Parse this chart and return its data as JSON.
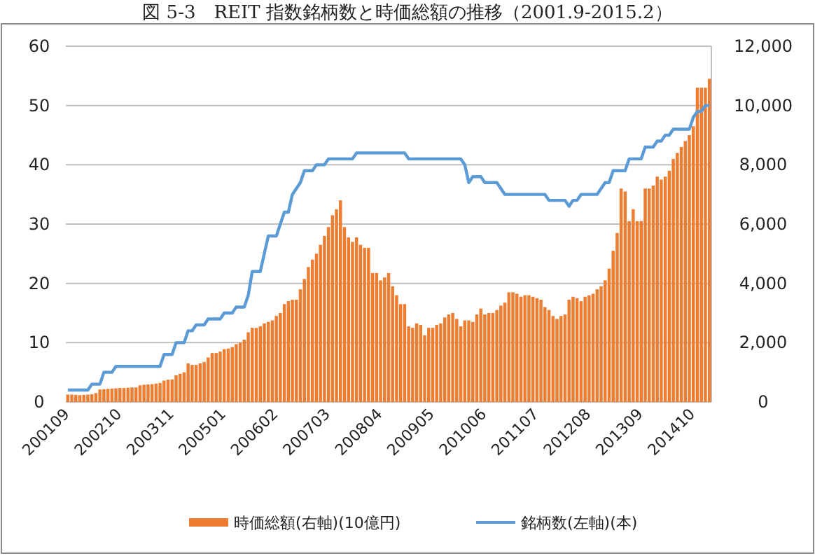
{
  "chart_data": {
    "type": "bar",
    "title": "図 5-3　REIT 指数銘柄数と時価総額の推移（2001.9-2015.2）",
    "categories": [
      "200109",
      null,
      null,
      null,
      null,
      null,
      null,
      null,
      null,
      null,
      null,
      null,
      null,
      "200210",
      null,
      null,
      null,
      null,
      null,
      null,
      null,
      null,
      null,
      null,
      null,
      null,
      "200311",
      null,
      null,
      null,
      null,
      null,
      null,
      null,
      null,
      null,
      null,
      null,
      null,
      "200501",
      null,
      null,
      null,
      null,
      null,
      null,
      null,
      null,
      null,
      null,
      null,
      null,
      "200602",
      null,
      null,
      null,
      null,
      null,
      null,
      null,
      null,
      null,
      null,
      null,
      null,
      "200703",
      null,
      null,
      null,
      null,
      null,
      null,
      null,
      null,
      null,
      null,
      null,
      null,
      "200804",
      null,
      null,
      null,
      null,
      null,
      null,
      null,
      null,
      null,
      null,
      null,
      null,
      "200905",
      null,
      null,
      null,
      null,
      null,
      null,
      null,
      null,
      null,
      null,
      null,
      null,
      "201006",
      null,
      null,
      null,
      null,
      null,
      null,
      null,
      null,
      null,
      null,
      null,
      null,
      "201107",
      null,
      null,
      null,
      null,
      null,
      null,
      null,
      null,
      null,
      null,
      null,
      null,
      "201208",
      null,
      null,
      null,
      null,
      null,
      null,
      null,
      null,
      null,
      null,
      null,
      null,
      "201309",
      null,
      null,
      null,
      null,
      null,
      null,
      null,
      null,
      null,
      null,
      null,
      null,
      "201410",
      null,
      null,
      null,
      null
    ],
    "series": [
      {
        "name": "時価総額(右軸)(10億円)",
        "type": "bar",
        "axis": "y2",
        "color": "#ed7d31",
        "values": [
          250,
          250,
          240,
          230,
          240,
          250,
          260,
          300,
          420,
          430,
          440,
          450,
          460,
          470,
          470,
          480,
          490,
          490,
          560,
          580,
          590,
          600,
          620,
          640,
          720,
          750,
          760,
          900,
          950,
          1000,
          1300,
          1250,
          1250,
          1300,
          1350,
          1500,
          1650,
          1650,
          1700,
          1780,
          1800,
          1850,
          1950,
          2000,
          2100,
          2350,
          2500,
          2500,
          2550,
          2650,
          2700,
          2750,
          2900,
          3000,
          3300,
          3400,
          3450,
          3450,
          3800,
          4150,
          4550,
          4800,
          5000,
          5300,
          5600,
          5900,
          6300,
          6500,
          6800,
          5900,
          5550,
          5400,
          5550,
          5300,
          5200,
          5200,
          4350,
          4350,
          4100,
          4200,
          4350,
          3900,
          3600,
          3300,
          3300,
          2550,
          2500,
          2650,
          2600,
          2250,
          2500,
          2500,
          2600,
          2650,
          2850,
          2950,
          3000,
          2800,
          2550,
          2750,
          2750,
          2700,
          2950,
          3150,
          2950,
          3000,
          3000,
          3100,
          3250,
          3350,
          3700,
          3700,
          3650,
          3550,
          3600,
          3600,
          3550,
          3500,
          3450,
          3200,
          3100,
          2900,
          2800,
          2900,
          2950,
          3450,
          3550,
          3500,
          3400,
          3550,
          3600,
          3650,
          3800,
          3900,
          4100,
          4500,
          5100,
          5700,
          7200,
          7100,
          6100,
          6500,
          6100,
          6100,
          7200,
          7200,
          7300,
          7600,
          7500,
          7600,
          7800,
          8200,
          8400,
          8600,
          8800,
          9000,
          9300,
          10600,
          10600,
          10600,
          10900
        ]
      },
      {
        "name": "銘柄数(左軸)(本)",
        "type": "line",
        "axis": "y",
        "color": "#5b9bd5",
        "values": [
          2,
          2,
          2,
          2,
          2,
          2,
          3,
          3,
          3,
          5,
          5,
          5,
          6,
          6,
          6,
          6,
          6,
          6,
          6,
          6,
          6,
          6,
          6,
          6,
          8,
          8,
          8,
          10,
          10,
          10,
          12,
          12,
          13,
          13,
          13,
          14,
          14,
          14,
          14,
          15,
          15,
          15,
          16,
          16,
          16,
          18,
          22,
          22,
          22,
          25,
          28,
          28,
          28,
          30,
          32,
          32,
          35,
          36,
          37,
          39,
          39,
          39,
          40,
          40,
          40,
          41,
          41,
          41,
          41,
          41,
          41,
          41,
          42,
          42,
          42,
          42,
          42,
          42,
          42,
          42,
          42,
          42,
          42,
          42,
          42,
          41,
          41,
          41,
          41,
          41,
          41,
          41,
          41,
          41,
          41,
          41,
          41,
          41,
          41,
          40,
          37,
          38,
          38,
          38,
          37,
          37,
          37,
          37,
          36,
          35,
          35,
          35,
          35,
          35,
          35,
          35,
          35,
          35,
          35,
          35,
          34,
          34,
          34,
          34,
          34,
          33,
          34,
          34,
          35,
          35,
          35,
          35,
          35,
          36,
          37,
          37,
          39,
          39,
          39,
          39,
          41,
          41,
          41,
          41,
          43,
          43,
          43,
          44,
          44,
          45,
          45,
          46,
          46,
          46,
          46,
          46,
          48,
          49,
          49,
          50,
          50
        ]
      }
    ],
    "ylim": [
      0,
      60
    ],
    "yticks": [
      0,
      10,
      20,
      30,
      40,
      50,
      60
    ],
    "y2lim": [
      0,
      12000
    ],
    "y2ticks": [
      0,
      {
        "value": 2000,
        "label": "2,000"
      },
      {
        "value": 4000,
        "label": "4,000"
      },
      {
        "value": 6000,
        "label": "6,000"
      },
      {
        "value": 8000,
        "label": "8,000"
      },
      {
        "value": 10000,
        "label": "10,000"
      },
      {
        "value": 12000,
        "label": "12,000"
      }
    ],
    "grid": "y",
    "legend": "bottom"
  }
}
